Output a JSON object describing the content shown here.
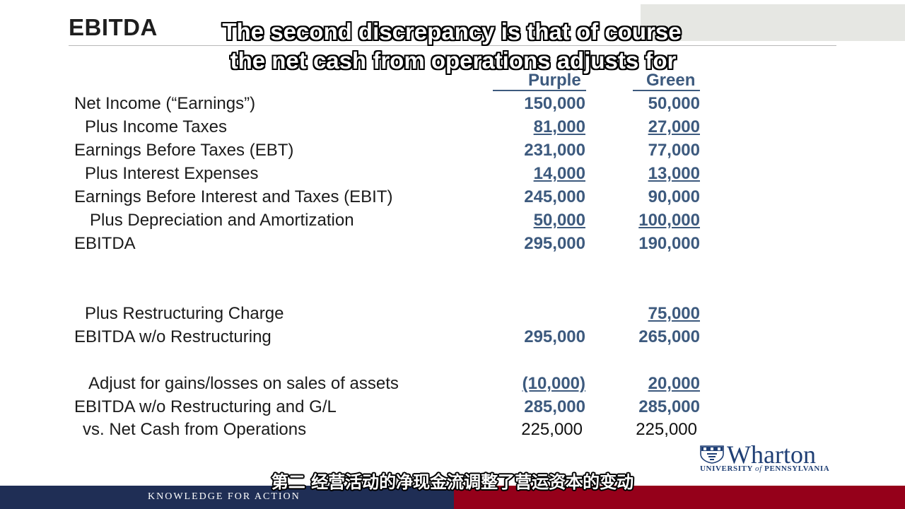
{
  "slide": {
    "title": "EBITDA",
    "caption_line1": "The second discrepancy is that of course",
    "caption_line2": "the net cash from operations adjusts for",
    "col_purple": "Purple",
    "col_green": "Green"
  },
  "rows": [
    {
      "label": "Net Income (“Earnings”)",
      "purple": "150,000",
      "green": "50,000"
    },
    {
      "label": "Plus Income Taxes",
      "purple": "81,000",
      "green": "27,000"
    },
    {
      "label": "Earnings Before Taxes (EBT)",
      "purple": "231,000",
      "green": "77,000"
    },
    {
      "label": "Plus Interest Expenses",
      "purple": "14,000",
      "green": "13,000"
    },
    {
      "label": "Earnings Before Interest and Taxes (EBIT)",
      "purple": "245,000",
      "green": "90,000"
    },
    {
      "label": "Plus Depreciation and Amortization",
      "purple": "50,000",
      "green": "100,000"
    },
    {
      "label": "EBITDA",
      "purple": "295,000",
      "green": "190,000"
    },
    {
      "label": "Plus Restructuring Charge",
      "purple": "",
      "green": "75,000"
    },
    {
      "label": "EBITDA w/o Restructuring",
      "purple": "295,000",
      "green": "265,000"
    },
    {
      "label": "Adjust for gains/losses on sales of assets",
      "purple": "(10,000)",
      "green": "20,000"
    },
    {
      "label": "EBITDA w/o Restructuring and G/L",
      "purple": "285,000",
      "green": "285,000"
    },
    {
      "label": "vs.  Net Cash from Operations",
      "purple": "225,000",
      "green": "225,000"
    }
  ],
  "logo": {
    "word": "Wharton",
    "sub_part1": "UNIVERSITY ",
    "sub_of": "of",
    "sub_part2": " PENNSYLVANIA"
  },
  "footer": {
    "text": "KNOWLEDGE FOR ACTION"
  },
  "subtitle": "第二 经营活动的净现金流调整了营运资本的变动",
  "colors": {
    "value_blue": "#3d5a7e",
    "footer_navy": "#1f2e55",
    "footer_red": "#95001a",
    "logo_blue": "#1f3f75"
  }
}
